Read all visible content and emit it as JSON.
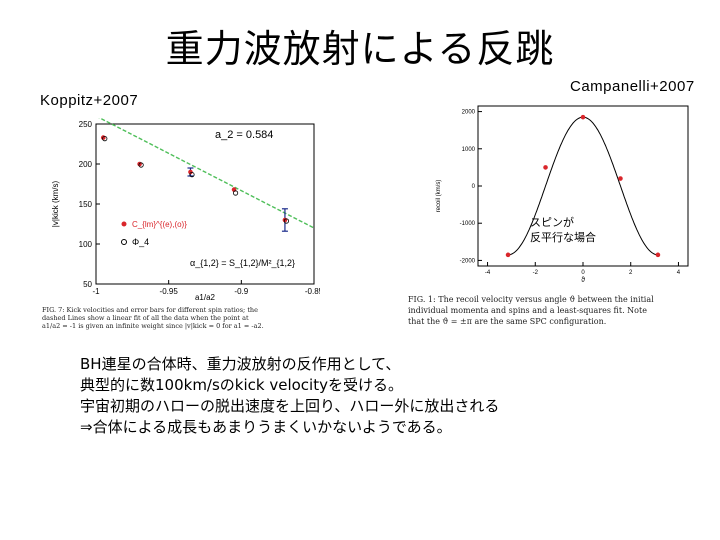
{
  "slide": {
    "title": "重力波放射による反跳",
    "label_left": "Koppitz+2007",
    "label_right": "Campanelli+2007",
    "body_lines": [
      "BH連星の合体時、重力波放射の反作用として、",
      "典型的に数100km/sのkick velocityを受ける。",
      "宇宙初期のハローの脱出速度を上回り、ハロー外に放出される",
      "⇒合体による成長もあまりうまくいかないようである。"
    ]
  },
  "figure_left": {
    "caption_lines": [
      "FIG. 7: Kick velocities and error bars for different spin ratios; the",
      "dashed Lines show a linear fit of all the data when the point at",
      "a1/a2 = -1 is given an infinite weight since |v|kick = 0 for a1 = -a2."
    ],
    "annotation_top": "a_2 = 0.584",
    "annotation_bottom": "α_{1,2} = S_{1,2}/M²_{1,2}",
    "legend_1": "C_{lm}^{(e),(o)}",
    "legend_2": "Φ_4"
  },
  "figure_right": {
    "caption_lines": [
      "FIG. 1: The recoil velocity versus angle ϑ between the initial",
      "individual momenta and spins and a least-squares fit. Note",
      "that the ϑ = ±π are the same SPC configuration."
    ],
    "annotation_lines": [
      "スピンが",
      "反平行な場合"
    ]
  },
  "chart_data": [
    {
      "type": "scatter",
      "xlabel": "a1/a2",
      "ylabel": "|v|kick (km/s)",
      "xlim": [
        -1.0,
        -0.85
      ],
      "ylim": [
        50,
        250
      ],
      "x_ticks": [
        "-1",
        "-0.95",
        "-0.9",
        "-0.85"
      ],
      "y_ticks": [
        "50",
        "100",
        "150",
        "200",
        "250"
      ],
      "grid": false,
      "series": [
        {
          "name": "C_lm^(e),(o)",
          "x": [
            -0.995,
            -0.97,
            -0.935,
            -0.905,
            -0.87
          ],
          "y": [
            233,
            200,
            190,
            168,
            130
          ],
          "err": [
            0,
            0,
            5,
            0,
            14
          ]
        },
        {
          "name": "Φ4",
          "x": [
            -0.995,
            -0.97,
            -0.935,
            -0.905,
            -0.87
          ],
          "y": [
            233,
            200,
            188,
            165,
            130
          ]
        }
      ],
      "fit_line": {
        "x": [
          -1.0,
          -0.85
        ],
        "y": [
          260,
          120
        ]
      }
    },
    {
      "type": "line",
      "xlabel": "ϑ",
      "ylabel": "recoil (km/s)",
      "xlim": [
        -4.4,
        4.4
      ],
      "ylim": [
        -2150,
        2150
      ],
      "x_ticks": [
        "-4",
        "-2",
        "0",
        "2",
        "4"
      ],
      "y_ticks": [
        "2000",
        "1000",
        "0",
        "-1000",
        "-2000"
      ],
      "grid": false,
      "series": [
        {
          "name": "data",
          "x": [
            -3.14,
            -1.57,
            0,
            1.57,
            3.14
          ],
          "y": [
            -1850,
            500,
            1850,
            200,
            -1850
          ]
        }
      ],
      "fit": {
        "A": 1850,
        "phase": 0
      }
    }
  ]
}
